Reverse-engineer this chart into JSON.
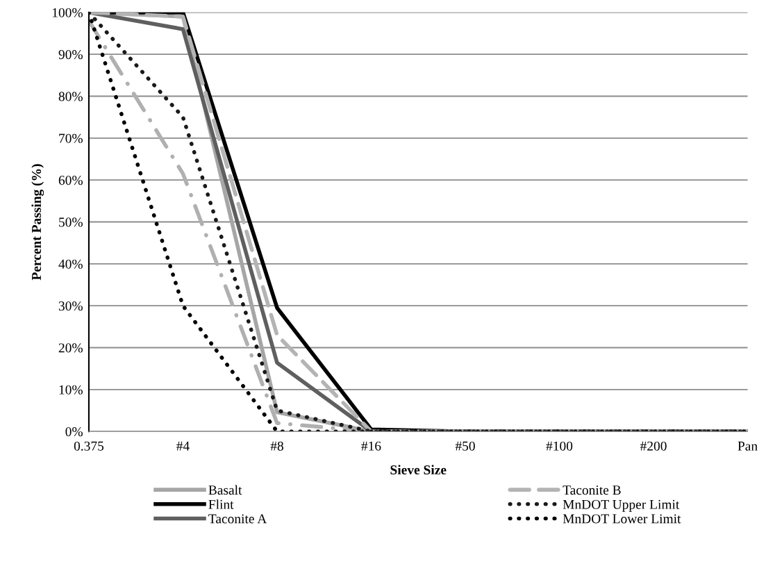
{
  "chart_data": {
    "type": "line",
    "xlabel": "Sieve Size",
    "ylabel": "Percent Passing (%)",
    "categories": [
      "0.375",
      "#4",
      "#8",
      "#16",
      "#50",
      "#100",
      "#200",
      "Pan"
    ],
    "ylim": [
      0,
      100
    ],
    "yticks": [
      {
        "value": 0,
        "label": "0%"
      },
      {
        "value": 10,
        "label": "10%"
      },
      {
        "value": 20,
        "label": "20%"
      },
      {
        "value": 30,
        "label": "30%"
      },
      {
        "value": 40,
        "label": "40%"
      },
      {
        "value": 50,
        "label": "50%"
      },
      {
        "value": 60,
        "label": "60%"
      },
      {
        "value": 70,
        "label": "70%"
      },
      {
        "value": 80,
        "label": "80%"
      },
      {
        "value": 90,
        "label": "90%"
      },
      {
        "value": 100,
        "label": "100%"
      }
    ],
    "grid": "y",
    "legend": "bottom",
    "marker": "none",
    "series": [
      {
        "name": "Basalt",
        "color": "#a6a6a6",
        "line_style": "solid",
        "values": [
          100,
          99,
          4.6,
          0,
          0,
          0,
          0,
          0
        ]
      },
      {
        "name": "Flint",
        "color": "#000000",
        "line_style": "solid",
        "values": [
          100,
          100,
          29.5,
          0.5,
          0,
          0,
          0,
          0
        ]
      },
      {
        "color": "#b0b0b0",
        "line_style": "dashdot",
        "values": [
          98,
          61.5,
          2,
          0,
          0,
          0,
          0,
          0
        ]
      },
      {
        "name": "Taconite A",
        "color": "#5f5f5f",
        "line_style": "solid",
        "values": [
          100,
          96,
          16.4,
          0,
          0,
          0,
          0,
          0
        ]
      },
      {
        "name": "Taconite B",
        "color": "#b4b4b4",
        "line_style": "dashed",
        "values": [
          100,
          99,
          23,
          0,
          0,
          0,
          0,
          0
        ]
      },
      {
        "name": "MnDOT Upper Limit",
        "color": "#1a1a1a",
        "line_style": "dotted",
        "values": [
          100,
          75,
          5,
          0,
          0,
          0,
          0,
          0
        ]
      },
      {
        "name": "MnDOT Lower Limit",
        "color": "#000000",
        "line_style": "dotted",
        "values": [
          100,
          30,
          0,
          0,
          0,
          0,
          0,
          0
        ]
      }
    ]
  }
}
